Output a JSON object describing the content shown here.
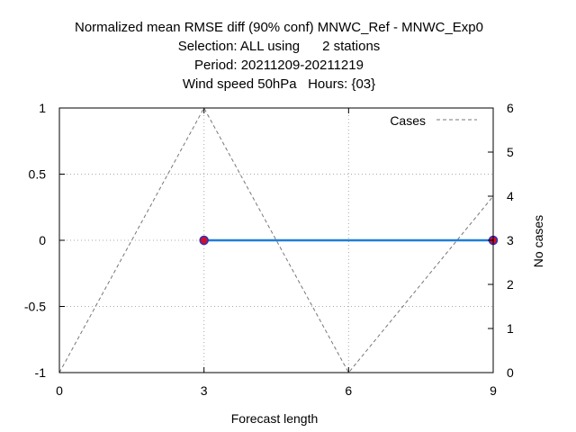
{
  "chart_data": {
    "type": "line",
    "title_lines": [
      "Normalized mean RMSE diff (90% conf) MNWC_Ref - MNWC_Exp0",
      "Selection: ALL using      2 stations",
      "Period: 20211209-20211219",
      "Wind speed 50hPa   Hours: {03}"
    ],
    "xlabel": "Forecast length",
    "ylabel": "",
    "y2label": "No cases",
    "xlim": [
      0,
      9
    ],
    "ylim": [
      -1,
      1
    ],
    "y2lim": [
      0,
      6
    ],
    "xticks": [
      0,
      3,
      6,
      9
    ],
    "yticks": [
      -1,
      -0.5,
      0,
      0.5,
      1
    ],
    "ytick_labels": [
      "-1",
      "-0.5",
      "0",
      "0.5",
      "1"
    ],
    "y2ticks": [
      0,
      1,
      2,
      3,
      4,
      5,
      6
    ],
    "grid": true,
    "legend_position": "top-right",
    "series": [
      {
        "role": "rmse-diff",
        "x": [
          3,
          9
        ],
        "y": [
          0,
          0
        ],
        "color": "#1f7fd6",
        "marker_color": "#d0102a",
        "marker_edge": "#3030c0"
      },
      {
        "role": "cases",
        "name": "Cases",
        "axis": "y2",
        "dashed": true,
        "x": [
          0,
          3,
          6,
          9
        ],
        "y": [
          0,
          6,
          0,
          4
        ],
        "color": "#777777"
      }
    ]
  }
}
